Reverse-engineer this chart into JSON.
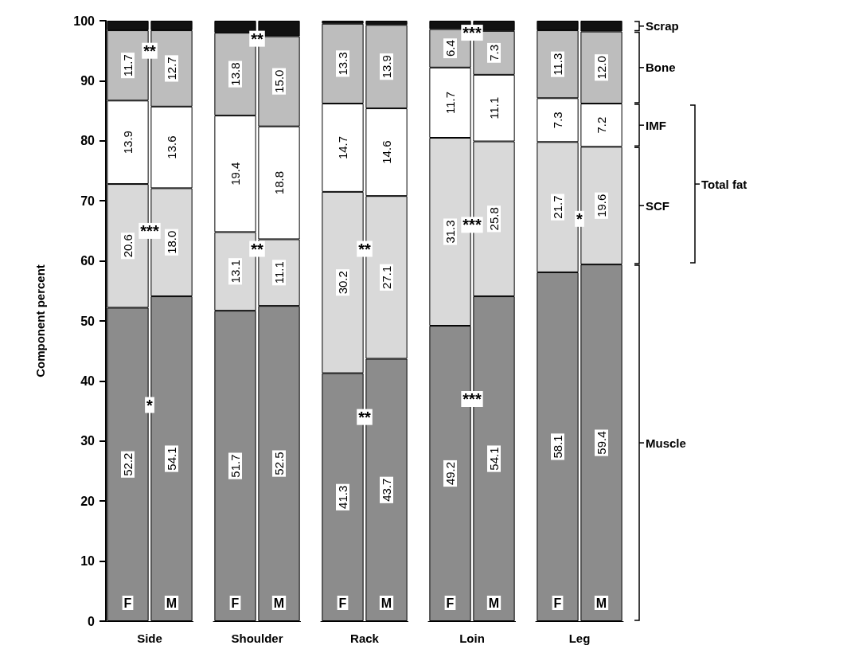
{
  "chart_data": [
    {
      "type": "bar",
      "stacked": true,
      "categories": [
        "F",
        "M"
      ],
      "xlabel": "Side",
      "ylabel": "Component percent",
      "ylim": [
        0,
        100
      ],
      "yticks": [
        0,
        10,
        20,
        30,
        40,
        50,
        60,
        70,
        80,
        90,
        100
      ],
      "grid": false,
      "series": [
        {
          "color": "#8c8c8c",
          "values": [
            52.2,
            54.1
          ],
          "value_labels": [
            "52.2",
            "54.1"
          ]
        },
        {
          "color": "#d9d9d9",
          "values": [
            20.6,
            18.0
          ],
          "value_labels": [
            "20.6",
            "18.0"
          ]
        },
        {
          "color": "#ffffff",
          "values": [
            13.9,
            13.6
          ],
          "value_labels": [
            "13.9",
            "13.6"
          ]
        },
        {
          "color": "#bdbdbd",
          "values": [
            11.7,
            12.7
          ],
          "value_labels": [
            "11.7",
            "12.7"
          ]
        },
        {
          "color": "#111111",
          "values": [
            1.6,
            1.6
          ]
        }
      ],
      "annotations": [
        {
          "text": "**",
          "y": 95
        },
        {
          "text": "***",
          "y": 65
        },
        {
          "text": "*",
          "y": 36
        }
      ]
    },
    {
      "type": "bar",
      "stacked": true,
      "categories": [
        "F",
        "M"
      ],
      "xlabel": "Shoulder",
      "ylim": [
        0,
        100
      ],
      "yticks": [
        0,
        10,
        20,
        30,
        40,
        50,
        60,
        70,
        80,
        90,
        100
      ],
      "tick_labels": "x",
      "grid": false,
      "series": [
        {
          "color": "#8c8c8c",
          "values": [
            51.7,
            52.5
          ],
          "value_labels": [
            "51.7",
            "52.5"
          ]
        },
        {
          "color": "#d9d9d9",
          "values": [
            13.1,
            11.1
          ],
          "value_labels": [
            "13.1",
            "11.1"
          ]
        },
        {
          "color": "#ffffff",
          "values": [
            19.4,
            18.8
          ],
          "value_labels": [
            "19.4",
            "18.8"
          ]
        },
        {
          "color": "#bdbdbd",
          "values": [
            13.8,
            15.0
          ],
          "value_labels": [
            "13.8",
            "15.0"
          ]
        },
        {
          "color": "#111111",
          "values": [
            2.0,
            2.6
          ]
        }
      ],
      "annotations": [
        {
          "text": "**",
          "y": 97
        },
        {
          "text": "**",
          "y": 62
        }
      ]
    },
    {
      "type": "bar",
      "stacked": true,
      "categories": [
        "F",
        "M"
      ],
      "xlabel": "Rack",
      "ylim": [
        0,
        100
      ],
      "yticks": [
        0,
        10,
        20,
        30,
        40,
        50,
        60,
        70,
        80,
        90,
        100
      ],
      "tick_labels": "x",
      "grid": false,
      "series": [
        {
          "color": "#8c8c8c",
          "values": [
            41.3,
            43.7
          ],
          "value_labels": [
            "41.3",
            "43.7"
          ]
        },
        {
          "color": "#d9d9d9",
          "values": [
            30.2,
            27.1
          ],
          "value_labels": [
            "30.2",
            "27.1"
          ]
        },
        {
          "color": "#ffffff",
          "values": [
            14.7,
            14.6
          ],
          "value_labels": [
            "14.7",
            "14.6"
          ]
        },
        {
          "color": "#bdbdbd",
          "values": [
            13.3,
            13.9
          ],
          "value_labels": [
            "13.3",
            "13.9"
          ]
        },
        {
          "color": "#111111",
          "values": [
            0.5,
            0.7
          ]
        }
      ],
      "annotations": [
        {
          "text": "**",
          "y": 62
        },
        {
          "text": "**",
          "y": 34
        }
      ]
    },
    {
      "type": "bar",
      "stacked": true,
      "categories": [
        "F",
        "M"
      ],
      "xlabel": "Loin",
      "ylim": [
        0,
        100
      ],
      "yticks": [
        0,
        10,
        20,
        30,
        40,
        50,
        60,
        70,
        80,
        90,
        100
      ],
      "tick_labels": "x",
      "grid": false,
      "series": [
        {
          "color": "#8c8c8c",
          "values": [
            49.2,
            54.1
          ],
          "value_labels": [
            "49.2",
            "54.1"
          ]
        },
        {
          "color": "#d9d9d9",
          "values": [
            31.3,
            25.8
          ],
          "value_labels": [
            "31.3",
            "25.8"
          ]
        },
        {
          "color": "#ffffff",
          "values": [
            11.7,
            11.1
          ],
          "value_labels": [
            "11.7",
            "11.1"
          ]
        },
        {
          "color": "#bdbdbd",
          "values": [
            6.4,
            7.3
          ],
          "value_labels": [
            "6.4",
            "7.3"
          ]
        },
        {
          "color": "#111111",
          "values": [
            1.4,
            1.7
          ]
        }
      ],
      "annotations": [
        {
          "text": "***",
          "y": 98
        },
        {
          "text": "***",
          "y": 66
        },
        {
          "text": "***",
          "y": 37
        }
      ]
    },
    {
      "type": "bar",
      "stacked": true,
      "categories": [
        "F",
        "M"
      ],
      "xlabel": "Leg",
      "ylim": [
        0,
        100
      ],
      "yticks": [
        0,
        10,
        20,
        30,
        40,
        50,
        60,
        70,
        80,
        90,
        100
      ],
      "tick_labels": "x",
      "grid": false,
      "legend": "right",
      "series": [
        {
          "name": "Muscle",
          "color": "#8c8c8c",
          "values": [
            58.1,
            59.4
          ],
          "value_labels": [
            "58.1",
            "59.4"
          ]
        },
        {
          "name": "SCF",
          "color": "#d9d9d9",
          "values": [
            21.7,
            19.6
          ],
          "value_labels": [
            "21.7",
            "19.6"
          ]
        },
        {
          "name": "IMF",
          "color": "#ffffff",
          "values": [
            7.3,
            7.2
          ],
          "value_labels": [
            "7.3",
            "7.2"
          ]
        },
        {
          "name": "Bone",
          "color": "#bdbdbd",
          "values": [
            11.3,
            12.0
          ],
          "value_labels": [
            "11.3",
            "12.0"
          ]
        },
        {
          "name": "Scrap",
          "color": "#111111",
          "values": [
            1.6,
            1.8
          ]
        }
      ],
      "annotations": [
        {
          "text": "*",
          "y": 67
        },
        "Total fat"
      ]
    }
  ]
}
